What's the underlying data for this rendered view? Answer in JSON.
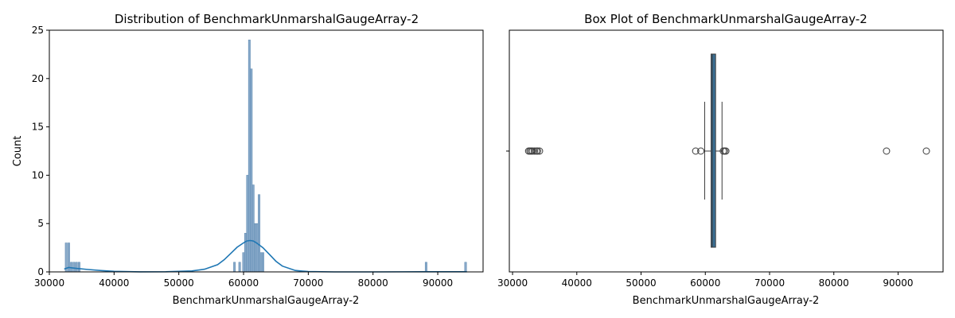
{
  "chart_data": [
    {
      "type": "histogram",
      "title": "Distribution of BenchmarkUnmarshalGaugeArray-2",
      "xlabel": "BenchmarkUnmarshalGaugeArray-2",
      "ylabel": "Count",
      "xlim": [
        30000,
        97000
      ],
      "ylim": [
        0,
        25
      ],
      "xticks": [
        30000,
        40000,
        50000,
        60000,
        70000,
        80000,
        90000
      ],
      "yticks": [
        0,
        5,
        10,
        15,
        20,
        25
      ],
      "bar_color": "#87a9c9",
      "kde_color": "#1f77b4",
      "bins": [
        {
          "x": 32600,
          "count": 3
        },
        {
          "x": 33000,
          "count": 3
        },
        {
          "x": 33400,
          "count": 1
        },
        {
          "x": 33800,
          "count": 1
        },
        {
          "x": 34200,
          "count": 1
        },
        {
          "x": 34600,
          "count": 1
        },
        {
          "x": 58600,
          "count": 1
        },
        {
          "x": 59400,
          "count": 1
        },
        {
          "x": 60000,
          "count": 2
        },
        {
          "x": 60300,
          "count": 4
        },
        {
          "x": 60600,
          "count": 10
        },
        {
          "x": 60900,
          "count": 24
        },
        {
          "x": 61200,
          "count": 21
        },
        {
          "x": 61500,
          "count": 9
        },
        {
          "x": 61800,
          "count": 5
        },
        {
          "x": 62100,
          "count": 5
        },
        {
          "x": 62400,
          "count": 8
        },
        {
          "x": 62700,
          "count": 2
        },
        {
          "x": 63000,
          "count": 2
        },
        {
          "x": 88200,
          "count": 1
        },
        {
          "x": 94300,
          "count": 1
        }
      ],
      "kde": {
        "x": [
          32300,
          33000,
          34000,
          36000,
          38000,
          40000,
          44000,
          48000,
          52000,
          54000,
          56000,
          57000,
          58000,
          59000,
          60000,
          60500,
          61000,
          61500,
          62000,
          63000,
          64000,
          65000,
          66000,
          68000,
          70000,
          74000,
          80000,
          88000,
          94500
        ],
        "y": [
          0.3,
          0.45,
          0.38,
          0.25,
          0.14,
          0.06,
          0.01,
          0.02,
          0.1,
          0.28,
          0.75,
          1.25,
          1.9,
          2.55,
          3.0,
          3.2,
          3.25,
          3.2,
          3.0,
          2.5,
          1.8,
          1.1,
          0.6,
          0.15,
          0.03,
          0.0,
          0.0,
          0.02,
          0.02
        ]
      }
    },
    {
      "type": "box",
      "title": "Box Plot of BenchmarkUnmarshalGaugeArray-2",
      "xlabel": "BenchmarkUnmarshalGaugeArray-2",
      "xlim": [
        29500,
        97000
      ],
      "xticks": [
        30000,
        40000,
        50000,
        60000,
        70000,
        80000,
        90000
      ],
      "box_color": "#3a6f94",
      "q1": 60900,
      "median": 61100,
      "q3": 61600,
      "whisker_low": 59900,
      "whisker_high": 62600,
      "outliers": [
        32500,
        32700,
        32900,
        33100,
        33400,
        33700,
        33900,
        34200,
        58500,
        59300,
        62800,
        63000,
        63200,
        88200,
        94400
      ]
    }
  ]
}
